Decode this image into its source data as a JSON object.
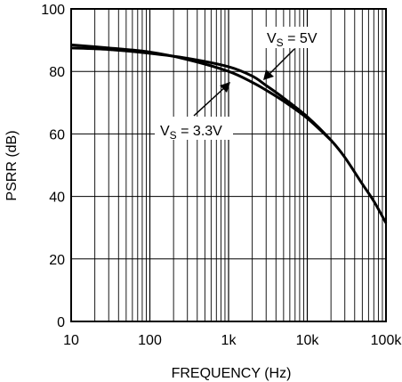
{
  "chart_data": {
    "type": "line",
    "title": "",
    "xlabel": "FREQUENCY (Hz)",
    "ylabel": "PSRR (dB)",
    "xscale": "log",
    "xlim": [
      10,
      100000
    ],
    "ylim": [
      0,
      100
    ],
    "grid": true,
    "x_tick_labels": [
      "10",
      "100",
      "1k",
      "10k",
      "100k"
    ],
    "x_tick_values": [
      10,
      100,
      1000,
      10000,
      100000
    ],
    "y_tick_labels": [
      "0",
      "20",
      "40",
      "60",
      "80",
      "100"
    ],
    "y_tick_values": [
      0,
      20,
      40,
      60,
      80,
      100
    ],
    "series": [
      {
        "name": "VS = 5V",
        "label_main": "V",
        "label_sub": "S",
        "label_rest": " = 5V",
        "x": [
          10,
          30,
          100,
          300,
          1000,
          2000,
          3000,
          5000,
          10000,
          20000,
          30000,
          50000,
          70000,
          100000
        ],
        "y": [
          87.5,
          87.0,
          85.8,
          84.2,
          81.5,
          78.5,
          75.5,
          71.5,
          65.5,
          58.0,
          52.5,
          44.0,
          38.5,
          31.5
        ]
      },
      {
        "name": "VS = 3.3V",
        "label_main": "V",
        "label_sub": "S",
        "label_rest": " = 3.3V",
        "x": [
          10,
          30,
          100,
          300,
          1000,
          2000,
          3000,
          5000,
          10000,
          20000
        ],
        "y": [
          88.5,
          87.5,
          86.2,
          83.8,
          80.0,
          76.5,
          74.0,
          70.5,
          65.0,
          58.0
        ]
      }
    ]
  }
}
